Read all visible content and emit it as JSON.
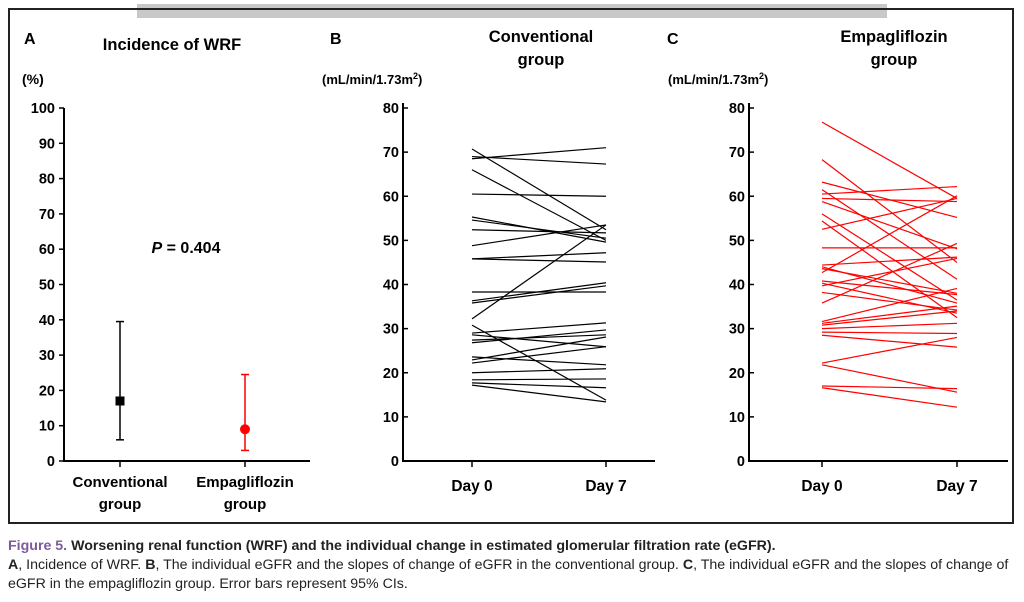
{
  "chart_data": [
    {
      "type": "scatter",
      "panel_label": "A",
      "title": "Incidence of WRF",
      "ylabel": "(%)",
      "ylim": [
        0,
        100
      ],
      "yticks": [
        0,
        10,
        20,
        30,
        40,
        50,
        60,
        70,
        80,
        90,
        100
      ],
      "categories": [
        "Conventional group",
        "Empagliflozin group"
      ],
      "category_lines": [
        [
          "Conventional",
          "group"
        ],
        [
          "Empagliflozin",
          "group"
        ]
      ],
      "annotation": {
        "p_label": "P",
        "p_text": " = 0.404"
      },
      "series": [
        {
          "name": "Conventional group",
          "value": 17,
          "ci_low": 6,
          "ci_high": 39.5,
          "marker": "square",
          "color": "#000000"
        },
        {
          "name": "Empagliflozin group",
          "value": 9,
          "ci_low": 3,
          "ci_high": 24.5,
          "marker": "circle",
          "color": "#ff0000"
        }
      ]
    },
    {
      "type": "line",
      "panel_label": "B",
      "title_lines": [
        "Conventional",
        "group"
      ],
      "ylabel": "(mL/min/1.73m",
      "ylabel_sup": "2",
      "ylabel_close": ")",
      "ylim": [
        0,
        80
      ],
      "yticks": [
        0,
        10,
        20,
        30,
        40,
        50,
        60,
        70,
        80
      ],
      "categories": [
        "Day 0",
        "Day 7"
      ],
      "color": "#000000",
      "series": [
        [
          70.7,
          52.4
        ],
        [
          69,
          67.3
        ],
        [
          68.5,
          71
        ],
        [
          66,
          50
        ],
        [
          60.5,
          60
        ],
        [
          55.3,
          49.6
        ],
        [
          54.6,
          50.5
        ],
        [
          52.4,
          51.7
        ],
        [
          48.8,
          53.5
        ],
        [
          45.8,
          47.2
        ],
        [
          45.8,
          45.1
        ],
        [
          38.3,
          38.3
        ],
        [
          36.3,
          40.4
        ],
        [
          35.8,
          39.7
        ],
        [
          32.2,
          53.5
        ],
        [
          30.8,
          13.8
        ],
        [
          29.0,
          31.3
        ],
        [
          28.6,
          25.9
        ],
        [
          27.4,
          28.6
        ],
        [
          26.8,
          29.7
        ],
        [
          23.6,
          21.8
        ],
        [
          22.9,
          28.1
        ],
        [
          22.2,
          25.9
        ],
        [
          20.0,
          20.9
        ],
        [
          18.4,
          18.6
        ],
        [
          17.7,
          16.6
        ],
        [
          17.2,
          13.4
        ]
      ]
    },
    {
      "type": "line",
      "panel_label": "C",
      "title_lines": [
        "Empagliflozin",
        "group"
      ],
      "ylabel": "(mL/min/1.73m",
      "ylabel_sup": "2",
      "ylabel_close": ")",
      "ylim": [
        0,
        80
      ],
      "yticks": [
        0,
        10,
        20,
        30,
        40,
        50,
        60,
        70,
        80
      ],
      "categories": [
        "Day 0",
        "Day 7"
      ],
      "color": "#ff0000",
      "series": [
        [
          76.8,
          59.5
        ],
        [
          68.3,
          45
        ],
        [
          63.2,
          55.2
        ],
        [
          61.5,
          41.2
        ],
        [
          60.5,
          62.2
        ],
        [
          59.5,
          58.8
        ],
        [
          58.8,
          48.1
        ],
        [
          56,
          36.5
        ],
        [
          54.4,
          32.5
        ],
        [
          52.5,
          59.5
        ],
        [
          48.3,
          48.3
        ],
        [
          44.4,
          46.2
        ],
        [
          44.0,
          35.8
        ],
        [
          43.6,
          38
        ],
        [
          42.7,
          60.1
        ],
        [
          40.8,
          37.7
        ],
        [
          40.3,
          33.5
        ],
        [
          39.7,
          45.9
        ],
        [
          38.2,
          34.2
        ],
        [
          35.8,
          49.3
        ],
        [
          31.6,
          39.1
        ],
        [
          31.2,
          35.1
        ],
        [
          30.8,
          34.0
        ],
        [
          30.0,
          31.2
        ],
        [
          29.2,
          28.9
        ],
        [
          28.5,
          25.8
        ],
        [
          22.2,
          28
        ],
        [
          21.8,
          15.6
        ],
        [
          17.0,
          16.4
        ],
        [
          16.6,
          12.2
        ]
      ]
    }
  ],
  "caption": {
    "fig_label": "Figure 5.",
    "title": " Worsening renal function (WRF) and the individual change in estimated glomerular filtration rate (eGFR).",
    "a_label": "A",
    "a_text": ", Incidence of WRF. ",
    "b_label": "B",
    "b_text": ", The individual eGFR and the slopes of change of eGFR in the conventional group. ",
    "c_label": "C",
    "c_text": ", The individual eGFR and the slopes of change of eGFR in the empagliflozin group. Error bars represent 95% CIs."
  }
}
